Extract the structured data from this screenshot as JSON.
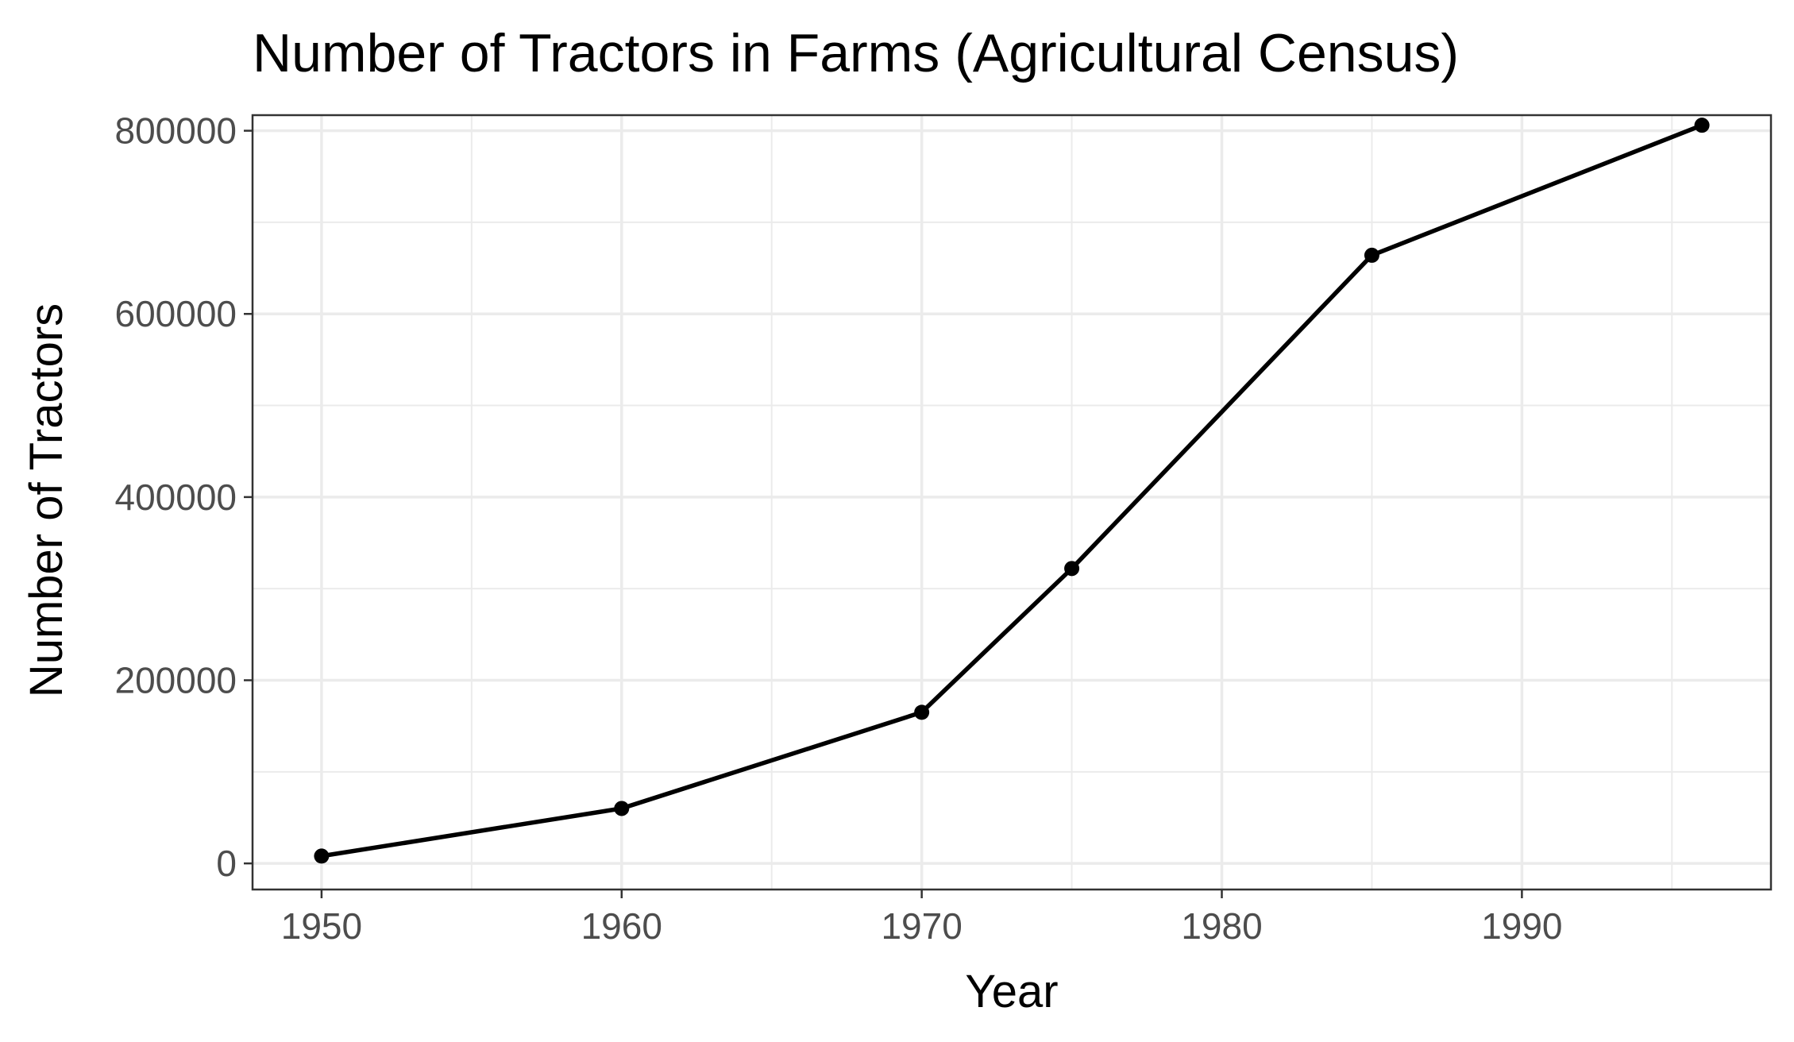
{
  "chart_data": {
    "type": "line",
    "title": "Number of Tractors in Farms (Agricultural Census)",
    "xlabel": "Year",
    "ylabel": "Number of Tractors",
    "x_ticks": [
      1950,
      1960,
      1970,
      1980,
      1990
    ],
    "y_ticks": [
      0,
      200000,
      400000,
      600000,
      800000
    ],
    "x_tick_labels": [
      "1950",
      "1960",
      "1970",
      "1980",
      "1990"
    ],
    "y_tick_labels": [
      "0",
      "200000",
      "400000",
      "600000",
      "800000"
    ],
    "xlim": [
      1947.7,
      1998.3
    ],
    "ylim": [
      -28500,
      817000
    ],
    "grid": true,
    "legend": "none",
    "series": [
      {
        "x": [
          1950,
          1960,
          1970,
          1975,
          1985,
          1996
        ],
        "values": [
          8000,
          60000,
          165000,
          322000,
          664000,
          806000
        ],
        "color": "#000000"
      }
    ],
    "colors": {
      "line": "#000000",
      "grid": "#ebebeb",
      "panel_border": "#333333",
      "tick_label": "#4d4d4d"
    }
  }
}
